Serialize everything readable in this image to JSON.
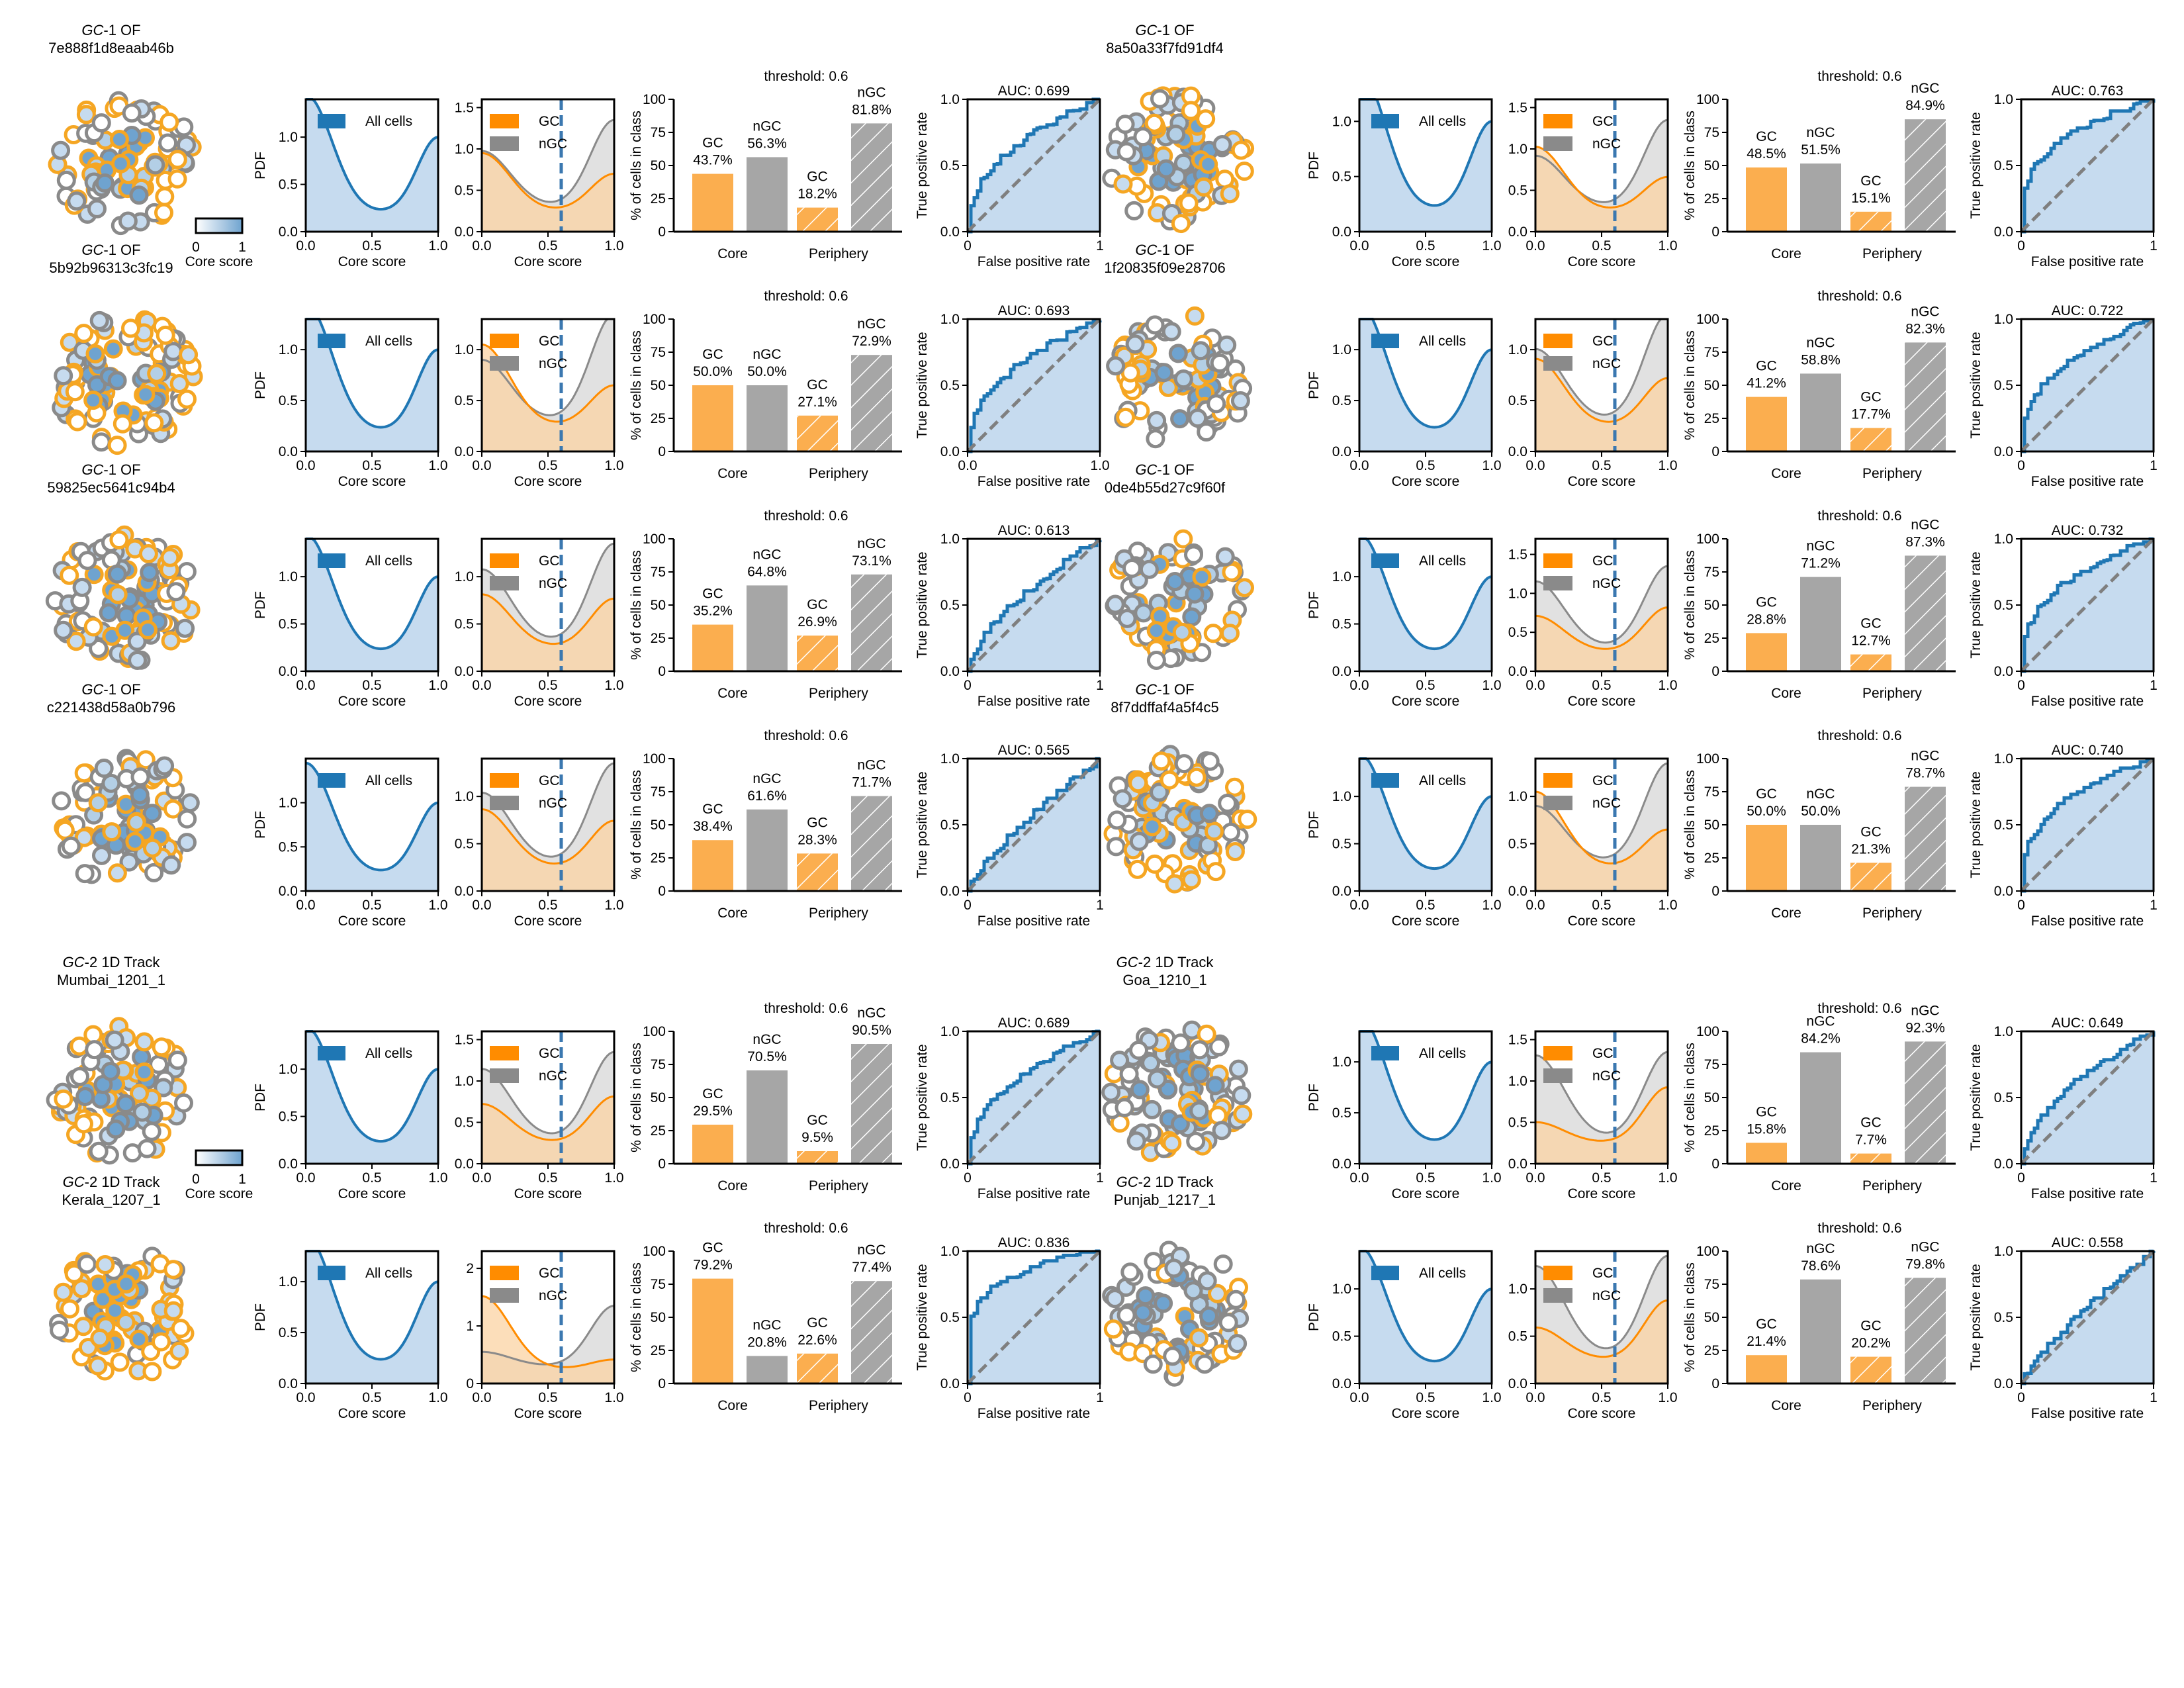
{
  "figure": {
    "axis_labels": {
      "core_score": "Core score",
      "pdf": "PDF",
      "pct_cells": "% of cells in class",
      "tpr": "True positive rate",
      "fpr": "False positive rate"
    },
    "colorbar_label": "Core score"
  },
  "colors": {
    "gc": "#f5a623",
    "ngc": "#8a8a8a",
    "all_cells": "#1f77b4",
    "fill_all": "#c6dbef",
    "threshold_line": "#3b78b0"
  },
  "chart_data": [
    {
      "block": 0,
      "row": 0,
      "col": 0,
      "type": "panel-group",
      "title_italic": "GC",
      "title_rest": "-1 OF",
      "subtitle": "7e888f1d8eaab46b",
      "pdf_legend": "All cells",
      "pdf_ylim": [
        0,
        1.4
      ],
      "pdf_yticks": [
        "0.0",
        "0.5",
        "1.0"
      ],
      "gc_ylim": [
        0,
        1.6
      ],
      "gc_yticks": [
        "0.0",
        "0.5",
        "1.0",
        "1.5"
      ],
      "legend_gc": "GC",
      "legend_ngc": "nGC",
      "threshold_label": "threshold: 0.6",
      "threshold": 0.6,
      "bar_categories": [
        "Core",
        "Periphery"
      ],
      "bars": {
        "core_gc": 43.7,
        "core_ngc": 56.3,
        "peri_gc": 18.2,
        "peri_ngc": 81.8
      },
      "bar_labels": {
        "core_gc": "43.7%",
        "core_ngc": "56.3%",
        "peri_gc": "18.2%",
        "peri_ngc": "81.8%"
      },
      "bar_ylim": [
        0,
        100
      ],
      "auc_label": "AUC: 0.699",
      "auc": 0.699,
      "roc_x_ticks": [
        "0",
        "1"
      ]
    },
    {
      "block": 0,
      "row": 0,
      "col": 1,
      "type": "panel-group",
      "title_italic": "GC",
      "title_rest": "-1 OF",
      "subtitle": "8a50a33f7fd91df4",
      "pdf_legend": "All cells",
      "pdf_ylim": [
        0,
        1.2
      ],
      "pdf_yticks": [
        "0.0",
        "0.5",
        "1.0"
      ],
      "gc_ylim": [
        0,
        1.6
      ],
      "gc_yticks": [
        "0.0",
        "0.5",
        "1.0",
        "1.5"
      ],
      "legend_gc": "GC",
      "legend_ngc": "nGC",
      "threshold_label": "threshold: 0.6",
      "threshold": 0.6,
      "bar_categories": [
        "Core",
        "Periphery"
      ],
      "bars": {
        "core_gc": 48.5,
        "core_ngc": 51.5,
        "peri_gc": 15.1,
        "peri_ngc": 84.9
      },
      "bar_labels": {
        "core_gc": "48.5%",
        "core_ngc": "51.5%",
        "peri_gc": "15.1%",
        "peri_ngc": "84.9%"
      },
      "bar_ylim": [
        0,
        100
      ],
      "auc_label": "AUC: 0.763",
      "auc": 0.763,
      "roc_x_ticks": [
        "0",
        "1"
      ]
    },
    {
      "block": 0,
      "row": 1,
      "col": 0,
      "type": "panel-group",
      "title_italic": "GC",
      "title_rest": "-1 OF",
      "subtitle": "5b92b96313c3fc19",
      "pdf_legend": "All cells",
      "pdf_ylim": [
        0,
        1.3
      ],
      "pdf_yticks": [
        "0.0",
        "0.5",
        "1.0"
      ],
      "gc_ylim": [
        0,
        1.3
      ],
      "gc_yticks": [
        "0.0",
        "0.5",
        "1.0"
      ],
      "legend_gc": "GC",
      "legend_ngc": "nGC",
      "threshold_label": "threshold: 0.6",
      "threshold": 0.6,
      "bar_categories": [
        "Core",
        "Periphery"
      ],
      "bars": {
        "core_gc": 50.0,
        "core_ngc": 50.0,
        "peri_gc": 27.1,
        "peri_ngc": 72.9
      },
      "bar_labels": {
        "core_gc": "50.0%",
        "core_ngc": "50.0%",
        "peri_gc": "27.1%",
        "peri_ngc": "72.9%"
      },
      "bar_ylim": [
        0,
        100
      ],
      "auc_label": "AUC: 0.693",
      "auc": 0.693,
      "roc_x_ticks": [
        "0.0",
        "1.0"
      ]
    },
    {
      "block": 0,
      "row": 1,
      "col": 1,
      "type": "panel-group",
      "title_italic": "GC",
      "title_rest": "-1 OF",
      "subtitle": "1f20835f09e28706",
      "pdf_legend": "All cells",
      "pdf_ylim": [
        0,
        1.3
      ],
      "pdf_yticks": [
        "0.0",
        "0.5",
        "1.0"
      ],
      "gc_ylim": [
        0,
        1.3
      ],
      "gc_yticks": [
        "0.0",
        "0.5",
        "1.0"
      ],
      "legend_gc": "GC",
      "legend_ngc": "nGC",
      "threshold_label": "threshold: 0.6",
      "threshold": 0.6,
      "bar_categories": [
        "Core",
        "Periphery"
      ],
      "bars": {
        "core_gc": 41.2,
        "core_ngc": 58.8,
        "peri_gc": 17.7,
        "peri_ngc": 82.3
      },
      "bar_labels": {
        "core_gc": "41.2%",
        "core_ngc": "58.8%",
        "peri_gc": "17.7%",
        "peri_ngc": "82.3%"
      },
      "bar_ylim": [
        0,
        100
      ],
      "auc_label": "AUC: 0.722",
      "auc": 0.722,
      "roc_x_ticks": [
        "0",
        "1"
      ]
    },
    {
      "block": 0,
      "row": 2,
      "col": 0,
      "type": "panel-group",
      "title_italic": "GC",
      "title_rest": "-1 OF",
      "subtitle": "59825ec5641c94b4",
      "pdf_legend": "All cells",
      "pdf_ylim": [
        0,
        1.4
      ],
      "pdf_yticks": [
        "0.0",
        "0.5",
        "1.0"
      ],
      "gc_ylim": [
        0,
        1.4
      ],
      "gc_yticks": [
        "0.0",
        "0.5",
        "1.0"
      ],
      "legend_gc": "GC",
      "legend_ngc": "nGC",
      "threshold_label": "threshold: 0.6",
      "threshold": 0.6,
      "bar_categories": [
        "Core",
        "Periphery"
      ],
      "bars": {
        "core_gc": 35.2,
        "core_ngc": 64.8,
        "peri_gc": 26.9,
        "peri_ngc": 73.1
      },
      "bar_labels": {
        "core_gc": "35.2%",
        "core_ngc": "64.8%",
        "peri_gc": "26.9%",
        "peri_ngc": "73.1%"
      },
      "bar_ylim": [
        0,
        100
      ],
      "auc_label": "AUC: 0.613",
      "auc": 0.613,
      "roc_x_ticks": [
        "0",
        "1"
      ]
    },
    {
      "block": 0,
      "row": 2,
      "col": 1,
      "type": "panel-group",
      "title_italic": "GC",
      "title_rest": "-1 OF",
      "subtitle": "0de4b55d27c9f60f",
      "pdf_legend": "All cells",
      "pdf_ylim": [
        0,
        1.4
      ],
      "pdf_yticks": [
        "0.0",
        "0.5",
        "1.0"
      ],
      "gc_ylim": [
        0,
        1.7
      ],
      "gc_yticks": [
        "0.0",
        "0.5",
        "1.0",
        "1.5"
      ],
      "legend_gc": "GC",
      "legend_ngc": "nGC",
      "threshold_label": "threshold: 0.6",
      "threshold": 0.6,
      "bar_categories": [
        "Core",
        "Periphery"
      ],
      "bars": {
        "core_gc": 28.8,
        "core_ngc": 71.2,
        "peri_gc": 12.7,
        "peri_ngc": 87.3
      },
      "bar_labels": {
        "core_gc": "28.8%",
        "core_ngc": "71.2%",
        "peri_gc": "12.7%",
        "peri_ngc": "87.3%"
      },
      "bar_ylim": [
        0,
        100
      ],
      "auc_label": "AUC: 0.732",
      "auc": 0.732,
      "roc_x_ticks": [
        "0",
        "1"
      ]
    },
    {
      "block": 0,
      "row": 3,
      "col": 0,
      "type": "panel-group",
      "title_italic": "GC",
      "title_rest": "-1 OF",
      "subtitle": "c221438d58a0b796",
      "pdf_legend": "All cells",
      "pdf_ylim": [
        0,
        1.5
      ],
      "pdf_yticks": [
        "0.0",
        "0.5",
        "1.0"
      ],
      "gc_ylim": [
        0,
        1.4
      ],
      "gc_yticks": [
        "0.0",
        "0.5",
        "1.0"
      ],
      "legend_gc": "GC",
      "legend_ngc": "nGC",
      "threshold_label": "threshold: 0.6",
      "threshold": 0.6,
      "bar_categories": [
        "Core",
        "Periphery"
      ],
      "bars": {
        "core_gc": 38.4,
        "core_ngc": 61.6,
        "peri_gc": 28.3,
        "peri_ngc": 71.7
      },
      "bar_labels": {
        "core_gc": "38.4%",
        "core_ngc": "61.6%",
        "peri_gc": "28.3%",
        "peri_ngc": "71.7%"
      },
      "bar_ylim": [
        0,
        100
      ],
      "auc_label": "AUC: 0.565",
      "auc": 0.565,
      "roc_x_ticks": [
        "0",
        "1"
      ]
    },
    {
      "block": 0,
      "row": 3,
      "col": 1,
      "type": "panel-group",
      "title_italic": "GC",
      "title_rest": "-1 OF",
      "subtitle": "8f7ddffaf4a5f4c5",
      "pdf_legend": "All cells",
      "pdf_ylim": [
        0,
        1.4
      ],
      "pdf_yticks": [
        "0.0",
        "0.5",
        "1.0"
      ],
      "gc_ylim": [
        0,
        1.4
      ],
      "gc_yticks": [
        "0.0",
        "0.5",
        "1.0"
      ],
      "legend_gc": "GC",
      "legend_ngc": "nGC",
      "threshold_label": "threshold: 0.6",
      "threshold": 0.6,
      "bar_categories": [
        "Core",
        "Periphery"
      ],
      "bars": {
        "core_gc": 50.0,
        "core_ngc": 50.0,
        "peri_gc": 21.3,
        "peri_ngc": 78.7
      },
      "bar_labels": {
        "core_gc": "50.0%",
        "core_ngc": "50.0%",
        "peri_gc": "21.3%",
        "peri_ngc": "78.7%"
      },
      "bar_ylim": [
        0,
        100
      ],
      "auc_label": "AUC: 0.740",
      "auc": 0.74,
      "roc_x_ticks": [
        "0",
        "1"
      ]
    },
    {
      "block": 1,
      "row": 0,
      "col": 0,
      "type": "panel-group",
      "title_italic": "GC",
      "title_rest": "-2 1D Track",
      "subtitle": "Mumbai_1201_1",
      "pdf_legend": "All cells",
      "pdf_ylim": [
        0,
        1.4
      ],
      "pdf_yticks": [
        "0.0",
        "0.5",
        "1.0"
      ],
      "gc_ylim": [
        0,
        1.6
      ],
      "gc_yticks": [
        "0.0",
        "0.5",
        "1.0",
        "1.5"
      ],
      "legend_gc": "GC",
      "legend_ngc": "nGC",
      "threshold_label": "threshold: 0.6",
      "threshold": 0.6,
      "bar_categories": [
        "Core",
        "Periphery"
      ],
      "bars": {
        "core_gc": 29.5,
        "core_ngc": 70.5,
        "peri_gc": 9.5,
        "peri_ngc": 90.5
      },
      "bar_labels": {
        "core_gc": "29.5%",
        "core_ngc": "70.5%",
        "peri_gc": "9.5%",
        "peri_ngc": "90.5%"
      },
      "bar_ylim": [
        0,
        100
      ],
      "auc_label": "AUC: 0.689",
      "auc": 0.689,
      "roc_x_ticks": [
        "0",
        "1"
      ]
    },
    {
      "block": 1,
      "row": 0,
      "col": 1,
      "type": "panel-group",
      "title_italic": "GC",
      "title_rest": "-2 1D Track",
      "subtitle": "Goa_1210_1",
      "pdf_legend": "All cells",
      "pdf_ylim": [
        0,
        1.3
      ],
      "pdf_yticks": [
        "0.0",
        "0.5",
        "1.0"
      ],
      "gc_ylim": [
        0,
        1.6
      ],
      "gc_yticks": [
        "0.0",
        "0.5",
        "1.0",
        "1.5"
      ],
      "legend_gc": "GC",
      "legend_ngc": "nGC",
      "threshold_label": "threshold: 0.6",
      "threshold": 0.6,
      "bar_categories": [
        "Core",
        "Periphery"
      ],
      "bars": {
        "core_gc": 15.8,
        "core_ngc": 84.2,
        "peri_gc": 7.7,
        "peri_ngc": 92.3
      },
      "bar_labels": {
        "core_gc": "15.8%",
        "core_ngc": "84.2%",
        "peri_gc": "7.7%",
        "peri_ngc": "92.3%"
      },
      "bar_ylim": [
        0,
        100
      ],
      "auc_label": "AUC: 0.649",
      "auc": 0.649,
      "roc_x_ticks": [
        "0",
        "1"
      ]
    },
    {
      "block": 1,
      "row": 1,
      "col": 0,
      "type": "panel-group",
      "title_italic": "GC",
      "title_rest": "-2 1D Track",
      "subtitle": "Kerala_1207_1",
      "pdf_legend": "All cells",
      "pdf_ylim": [
        0,
        1.3
      ],
      "pdf_yticks": [
        "0.0",
        "0.5",
        "1.0"
      ],
      "gc_ylim": [
        0,
        2.3
      ],
      "gc_yticks": [
        "0",
        "1",
        "2"
      ],
      "legend_gc": "GC",
      "legend_ngc": "nGC",
      "threshold_label": "threshold: 0.6",
      "threshold": 0.6,
      "bar_categories": [
        "Core",
        "Periphery"
      ],
      "bars": {
        "core_gc": 79.2,
        "core_ngc": 20.8,
        "peri_gc": 22.6,
        "peri_ngc": 77.4
      },
      "bar_labels": {
        "core_gc": "79.2%",
        "core_ngc": "20.8%",
        "peri_gc": "22.6%",
        "peri_ngc": "77.4%"
      },
      "bar_ylim": [
        0,
        100
      ],
      "auc_label": "AUC: 0.836",
      "auc": 0.836,
      "roc_x_ticks": [
        "0",
        "1"
      ]
    },
    {
      "block": 1,
      "row": 1,
      "col": 1,
      "type": "panel-group",
      "title_italic": "GC",
      "title_rest": "-2 1D Track",
      "subtitle": "Punjab_1217_1",
      "pdf_legend": "All cells",
      "pdf_ylim": [
        0,
        1.4
      ],
      "pdf_yticks": [
        "0.0",
        "0.5",
        "1.0"
      ],
      "gc_ylim": [
        0,
        1.4
      ],
      "gc_yticks": [
        "0.0",
        "0.5",
        "1.0"
      ],
      "legend_gc": "GC",
      "legend_ngc": "nGC",
      "threshold_label": "threshold: 0.6",
      "threshold": 0.6,
      "bar_categories": [
        "Core",
        "Periphery"
      ],
      "bars": {
        "core_gc": 21.4,
        "core_ngc": 78.6,
        "peri_gc": 20.2,
        "peri_ngc": 79.8
      },
      "bar_labels": {
        "core_gc": "21.4%",
        "core_ngc": "78.6%",
        "peri_gc": "20.2%",
        "peri_ngc": "79.8%"
      },
      "bar_ylim": [
        0,
        100
      ],
      "auc_label": "AUC: 0.558",
      "auc": 0.558,
      "roc_x_ticks": [
        "0",
        "1"
      ]
    }
  ]
}
